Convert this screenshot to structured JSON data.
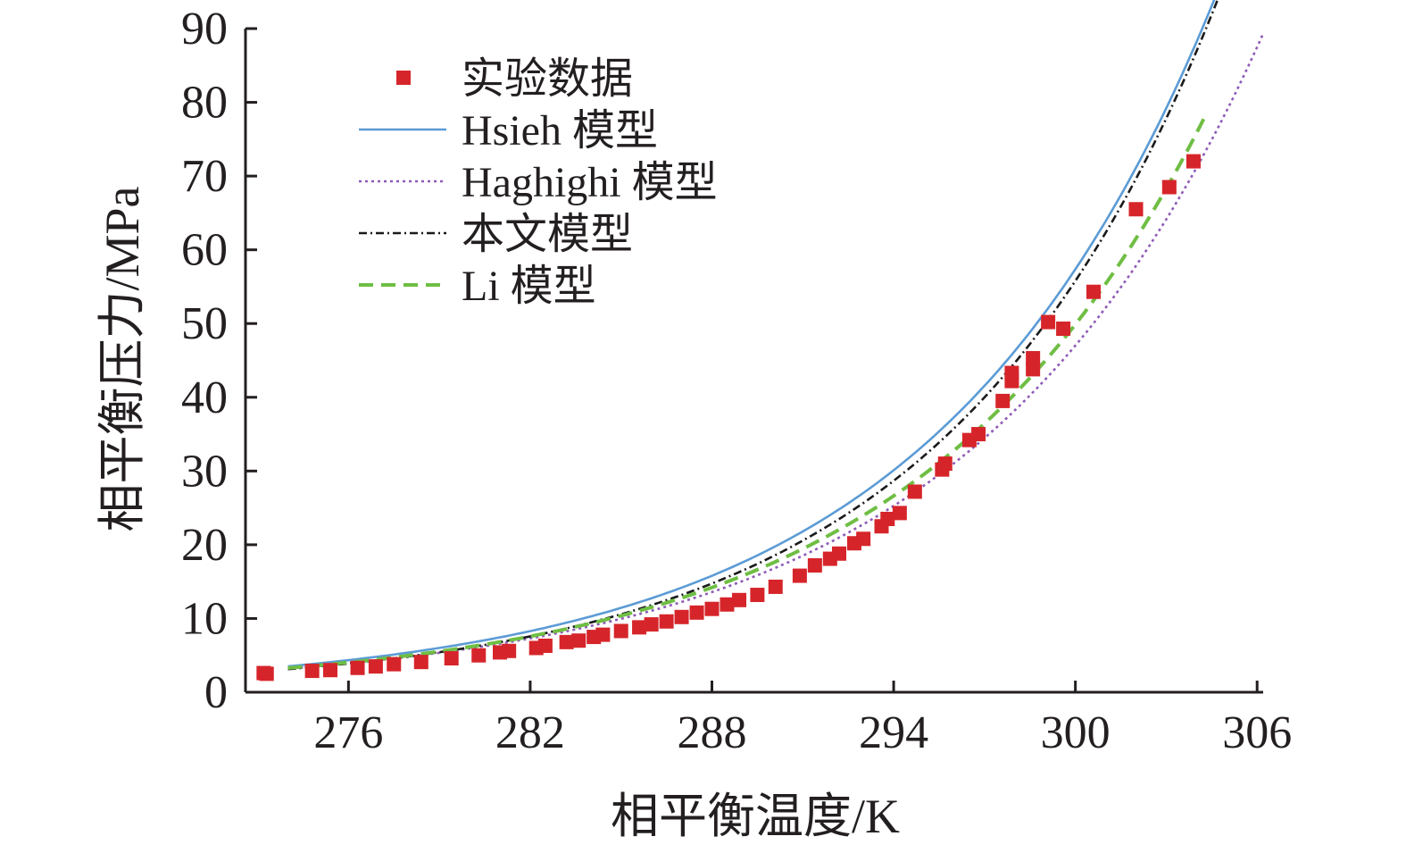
{
  "chart_data": {
    "type": "line",
    "xlabel": "相平衡温度/K",
    "ylabel": "相平衡压力/MPa",
    "xlim": [
      272.6,
      306.2
    ],
    "ylim": [
      0,
      90
    ],
    "x_ticks": [
      276,
      282,
      288,
      294,
      300,
      306
    ],
    "y_ticks": [
      0,
      10,
      20,
      30,
      40,
      50,
      60,
      70,
      80,
      90
    ],
    "grid": false,
    "legend_position": "top-left",
    "series": [
      {
        "name": "实验数据",
        "kind": "scatter",
        "color": "#d6252a",
        "marker": "square",
        "points": [
          [
            273.2,
            2.6
          ],
          [
            273.3,
            2.5
          ],
          [
            274.8,
            2.9
          ],
          [
            275.4,
            3.0
          ],
          [
            276.3,
            3.3
          ],
          [
            276.9,
            3.5
          ],
          [
            277.5,
            3.8
          ],
          [
            278.4,
            4.1
          ],
          [
            279.4,
            4.6
          ],
          [
            280.3,
            5.0
          ],
          [
            281.0,
            5.4
          ],
          [
            281.3,
            5.6
          ],
          [
            282.2,
            6.0
          ],
          [
            282.5,
            6.3
          ],
          [
            283.2,
            6.8
          ],
          [
            283.6,
            7.0
          ],
          [
            284.1,
            7.5
          ],
          [
            284.4,
            7.8
          ],
          [
            285.0,
            8.3
          ],
          [
            285.6,
            8.8
          ],
          [
            286.0,
            9.2
          ],
          [
            286.5,
            9.6
          ],
          [
            287.0,
            10.2
          ],
          [
            287.5,
            10.8
          ],
          [
            288.0,
            11.3
          ],
          [
            288.5,
            11.9
          ],
          [
            288.9,
            12.5
          ],
          [
            289.5,
            13.2
          ],
          [
            290.1,
            14.3
          ],
          [
            290.9,
            15.8
          ],
          [
            291.4,
            17.2
          ],
          [
            291.9,
            18.1
          ],
          [
            292.2,
            18.8
          ],
          [
            292.7,
            20.2
          ],
          [
            293.0,
            20.8
          ],
          [
            293.6,
            22.5
          ],
          [
            293.8,
            23.5
          ],
          [
            294.2,
            24.3
          ],
          [
            294.7,
            27.2
          ],
          [
            295.6,
            30.2
          ],
          [
            295.7,
            31.0
          ],
          [
            296.5,
            34.2
          ],
          [
            296.8,
            35.0
          ],
          [
            297.6,
            39.5
          ],
          [
            297.9,
            42.2
          ],
          [
            297.9,
            43.3
          ],
          [
            298.6,
            43.8
          ],
          [
            298.6,
            45.3
          ],
          [
            299.1,
            50.2
          ],
          [
            299.6,
            49.3
          ],
          [
            300.6,
            54.3
          ],
          [
            302.0,
            65.5
          ],
          [
            303.1,
            68.5
          ],
          [
            303.9,
            72.0
          ]
        ]
      },
      {
        "name": "Hsieh 模型",
        "kind": "line",
        "color": "#5b9bd5",
        "dash": "solid",
        "x_range": [
          274.0,
          304.8
        ],
        "params": {
          "a": 3.2,
          "b": 0.1075
        }
      },
      {
        "name": "Haghighi 模型",
        "kind": "line",
        "color": "#8e5bb7",
        "dash": "dotted",
        "x_range": [
          274.0,
          306.2
        ],
        "params": {
          "a": 2.92,
          "b": 0.1035
        }
      },
      {
        "name": "本文模型",
        "kind": "line",
        "color": "#1a1a1a",
        "dash": "dashdot",
        "x_range": [
          274.0,
          305.1
        ],
        "params": {
          "a": 2.84,
          "b": 0.1109
        }
      },
      {
        "name": "Li 模型",
        "kind": "line",
        "color": "#6fbe44",
        "dash": "dashed",
        "x_range": [
          274.0,
          304.3
        ],
        "params": {
          "a": 3.0,
          "b": 0.1047
        }
      }
    ]
  }
}
